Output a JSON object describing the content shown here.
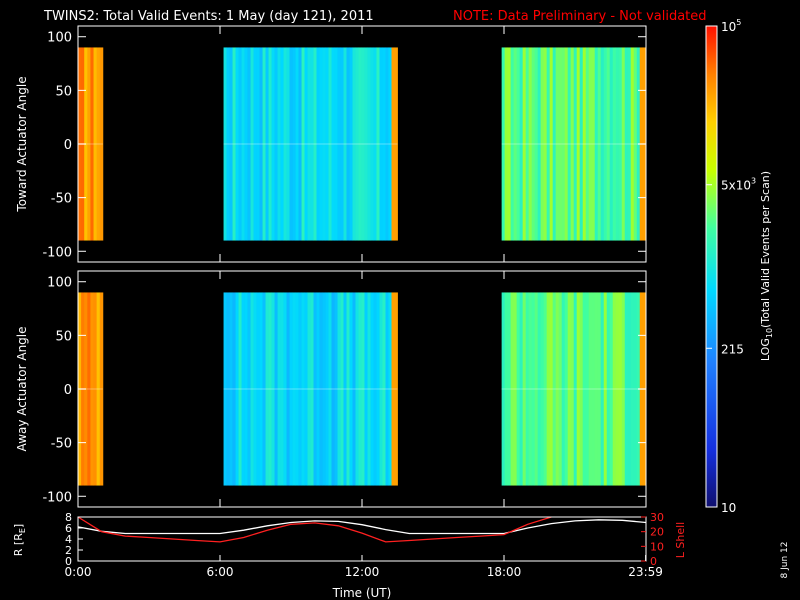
{
  "title": "TWINS2: Total Valid Events:  1 May (day 121), 2011",
  "note": "NOTE: Data Preliminary - Not validated",
  "date_stamp": "8 Jun 12",
  "colors": {
    "background": "#000000",
    "text": "#ffffff",
    "note": "#ff0000",
    "lshell": "#ff2020",
    "r": "#ffffff"
  },
  "chart_data": [
    {
      "type": "heatmap",
      "panel": "toward",
      "ylabel": "Toward Actuator Angle",
      "ylim": [
        -110,
        110
      ],
      "yticks": [
        100,
        50,
        0,
        -50,
        -100
      ],
      "xlim": [
        0,
        24
      ],
      "data_ylim": [
        -90,
        90
      ],
      "blocks": [
        {
          "start": 0.0,
          "end": 1.05,
          "level": 0.87
        },
        {
          "start": 6.15,
          "end": 13.5,
          "level": 0.47
        },
        {
          "start": 17.9,
          "end": 23.99,
          "level": 0.6
        }
      ]
    },
    {
      "type": "heatmap",
      "panel": "away",
      "ylabel": "Away Actuator Angle",
      "ylim": [
        -110,
        110
      ],
      "yticks": [
        100,
        50,
        0,
        -50,
        -100
      ],
      "xlim": [
        0,
        24
      ],
      "data_ylim": [
        -90,
        90
      ],
      "blocks": [
        {
          "start": 0.0,
          "end": 1.05,
          "level": 0.87
        },
        {
          "start": 6.15,
          "end": 13.5,
          "level": 0.46
        },
        {
          "start": 17.9,
          "end": 23.99,
          "level": 0.6
        }
      ]
    },
    {
      "type": "line",
      "panel": "ephemeris",
      "xlabel": "Time (UT)",
      "xticks": [
        {
          "value": 0,
          "label": "0:00"
        },
        {
          "value": 6,
          "label": "6:00"
        },
        {
          "value": 12,
          "label": "12:00"
        },
        {
          "value": 18,
          "label": "18:00"
        },
        {
          "value": 23.983,
          "label": "23:59"
        }
      ],
      "left_axis": {
        "label": "R [R",
        "label_sub": "E",
        "label_end": "]",
        "ylim": [
          0,
          8
        ],
        "ticks": [
          0,
          2,
          4,
          6,
          8
        ]
      },
      "right_axis": {
        "label": "L Shell",
        "ylim": [
          0,
          30
        ],
        "ticks": [
          0,
          10,
          20,
          30
        ]
      },
      "series": [
        {
          "axis": "left",
          "color": "#ffffff",
          "x": [
            0,
            1,
            2,
            3,
            4,
            5,
            6,
            7,
            8,
            9,
            10,
            11,
            12,
            13,
            14,
            15,
            16,
            17,
            18,
            19,
            20,
            21,
            22,
            23,
            24
          ],
          "y": [
            6.2,
            5.4,
            5.0,
            5.0,
            5.0,
            5.0,
            5.0,
            5.6,
            6.4,
            7.0,
            7.3,
            7.2,
            6.6,
            5.7,
            5.0,
            5.0,
            5.0,
            5.0,
            5.0,
            6.0,
            6.8,
            7.3,
            7.5,
            7.4,
            7.0
          ]
        },
        {
          "axis": "right",
          "x": [
            0,
            1,
            2,
            3,
            4,
            5,
            6,
            7,
            8,
            9,
            10,
            11,
            12,
            13,
            14,
            15,
            16,
            17,
            18,
            19,
            20
          ],
          "y": [
            30,
            20,
            17,
            16,
            15,
            14,
            13,
            16,
            21,
            25,
            26,
            24,
            19,
            13,
            14,
            15,
            16,
            17,
            18,
            25,
            33
          ],
          "color": "#ff2020"
        }
      ]
    },
    {
      "type": "colorbar",
      "label": "LOG",
      "label_sub": "10",
      "label_rest": "(Total Valid Events per Scan)",
      "ticks": [
        {
          "label": "10",
          "level": 0.0
        },
        {
          "label": "215",
          "level": 0.33
        },
        {
          "label": "5x10",
          "sup": "3",
          "level": 0.67
        },
        {
          "label": "10",
          "sup": "5",
          "level": 1.0
        }
      ]
    }
  ]
}
